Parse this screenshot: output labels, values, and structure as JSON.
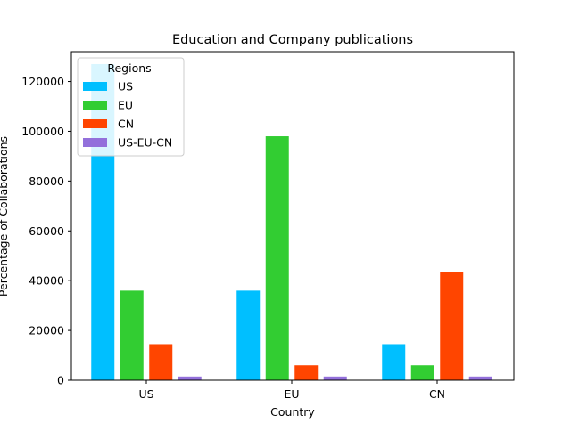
{
  "chart_data": {
    "type": "bar",
    "title": "Education and Company publications",
    "xlabel": "Country",
    "ylabel": "Percentage of Collaborations",
    "categories": [
      "US",
      "EU",
      "CN"
    ],
    "ylim": [
      0,
      132000
    ],
    "yticks": [
      0,
      20000,
      40000,
      60000,
      80000,
      100000,
      120000
    ],
    "ytick_labels": [
      "0",
      "20000",
      "40000",
      "60000",
      "80000",
      "100000",
      "120000"
    ],
    "legend": {
      "title": "Regions",
      "placement": "top-left"
    },
    "grid": false,
    "series": [
      {
        "name": "US",
        "color": "#00BFFF",
        "values": [
          127000,
          36000,
          14500
        ]
      },
      {
        "name": "EU",
        "color": "#32CD32",
        "values": [
          36000,
          98000,
          6000
        ]
      },
      {
        "name": "CN",
        "color": "#FF4500",
        "values": [
          14500,
          6000,
          43500
        ]
      },
      {
        "name": "US-EU-CN",
        "color": "#9370DB",
        "values": [
          1500,
          1500,
          1500
        ]
      }
    ]
  }
}
